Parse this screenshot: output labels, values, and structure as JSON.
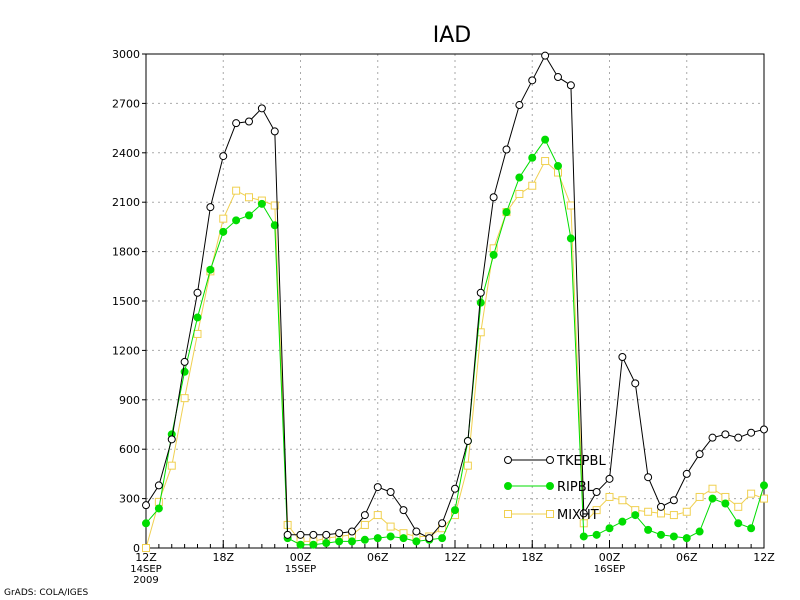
{
  "chart_data": {
    "type": "line",
    "title": "IAD",
    "xlabel": "",
    "ylabel": "",
    "ylim": [
      0,
      3000
    ],
    "yticks": [
      0,
      300,
      600,
      900,
      1200,
      1500,
      1800,
      2100,
      2400,
      2700,
      3000
    ],
    "xlim": [
      0,
      48
    ],
    "grid": true,
    "legend_position": "center-right",
    "xtick_labels": [
      {
        "x": 0,
        "label": "12Z",
        "sub": [
          "14SEP",
          "2009"
        ]
      },
      {
        "x": 6,
        "label": "18Z",
        "sub": []
      },
      {
        "x": 12,
        "label": "00Z",
        "sub": [
          "15SEP"
        ]
      },
      {
        "x": 18,
        "label": "06Z",
        "sub": []
      },
      {
        "x": 24,
        "label": "12Z",
        "sub": []
      },
      {
        "x": 30,
        "label": "18Z",
        "sub": []
      },
      {
        "x": 36,
        "label": "00Z",
        "sub": [
          "16SEP"
        ]
      },
      {
        "x": 42,
        "label": "06Z",
        "sub": []
      },
      {
        "x": 48,
        "label": "12Z",
        "sub": []
      }
    ],
    "series": [
      {
        "name": "TKEPBL",
        "color": "#000000",
        "marker": "open-circle",
        "x": [
          0,
          1,
          2,
          3,
          4,
          5,
          6,
          7,
          8,
          9,
          10,
          11,
          12,
          13,
          14,
          15,
          16,
          17,
          18,
          19,
          20,
          21,
          22,
          23,
          24,
          25,
          26,
          27,
          28,
          29,
          30,
          31,
          32,
          33,
          34,
          35,
          36,
          37,
          38,
          39,
          40,
          41,
          42,
          43,
          44,
          45,
          46,
          47,
          48
        ],
        "values": [
          260,
          380,
          660,
          1130,
          1550,
          2070,
          2380,
          2580,
          2590,
          2670,
          2530,
          80,
          80,
          80,
          80,
          90,
          100,
          200,
          370,
          340,
          230,
          100,
          60,
          150,
          360,
          650,
          1550,
          2130,
          2420,
          2690,
          2840,
          2990,
          2860,
          2810,
          210,
          340,
          420,
          1160,
          1000,
          430,
          250,
          290,
          450,
          570,
          670,
          690,
          670,
          700,
          720
        ]
      },
      {
        "name": "RIPBL",
        "color": "#00dd00",
        "marker": "filled-circle",
        "x": [
          0,
          1,
          2,
          3,
          4,
          5,
          6,
          7,
          8,
          9,
          10,
          11,
          12,
          13,
          14,
          15,
          16,
          17,
          18,
          19,
          20,
          21,
          22,
          23,
          24,
          25,
          26,
          27,
          28,
          29,
          30,
          31,
          32,
          33,
          34,
          35,
          36,
          37,
          38,
          39,
          40,
          41,
          42,
          43,
          44,
          45,
          46,
          47,
          48
        ],
        "values": [
          150,
          240,
          690,
          1070,
          1400,
          1690,
          1920,
          1990,
          2020,
          2090,
          1960,
          60,
          20,
          20,
          30,
          40,
          40,
          50,
          60,
          70,
          60,
          40,
          50,
          60,
          230,
          650,
          1490,
          1780,
          2040,
          2250,
          2370,
          2480,
          2320,
          1880,
          70,
          80,
          120,
          160,
          200,
          110,
          80,
          70,
          60,
          100,
          300,
          270,
          150,
          120,
          380
        ]
      },
      {
        "name": "MIXHT",
        "color": "#f0d050",
        "marker": "open-square",
        "x": [
          0,
          1,
          2,
          3,
          4,
          5,
          6,
          7,
          8,
          9,
          10,
          11,
          12,
          13,
          14,
          15,
          16,
          17,
          18,
          19,
          20,
          21,
          22,
          23,
          24,
          25,
          26,
          27,
          28,
          29,
          30,
          31,
          32,
          33,
          34,
          35,
          36,
          37,
          38,
          39,
          40,
          41,
          42,
          43,
          44,
          45,
          46,
          47,
          48
        ],
        "values": [
          0,
          280,
          500,
          910,
          1300,
          1680,
          2000,
          2170,
          2130,
          2110,
          2080,
          140,
          40,
          40,
          60,
          70,
          80,
          140,
          200,
          130,
          90,
          70,
          70,
          120,
          200,
          500,
          1310,
          1820,
          2040,
          2150,
          2200,
          2350,
          2280,
          2080,
          150,
          230,
          310,
          290,
          230,
          220,
          210,
          200,
          220,
          310,
          360,
          310,
          250,
          330,
          300
        ]
      }
    ]
  },
  "footer": {
    "credit": "GrADS: COLA/IGES"
  }
}
